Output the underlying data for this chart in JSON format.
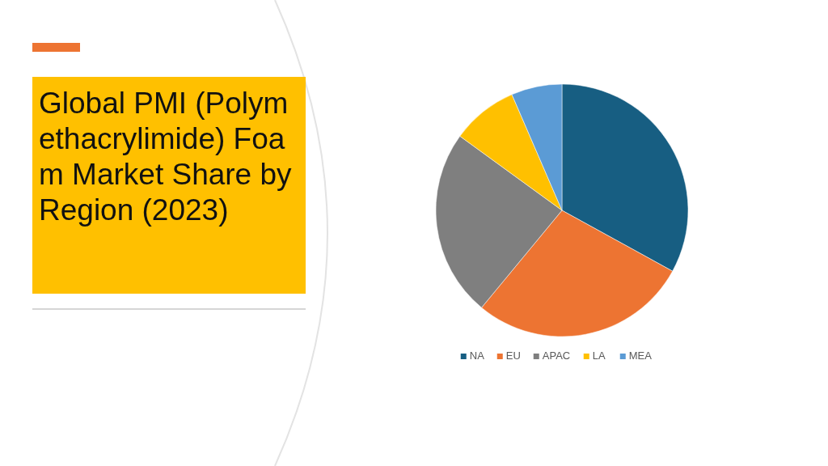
{
  "chart_data": {
    "type": "pie",
    "title": "Global PMI (Polymethacrylimide) Foam Market Share by Region (2023)",
    "categories": [
      "NA",
      "EU",
      "APAC",
      "LA",
      "MEA"
    ],
    "values": [
      33,
      28,
      24,
      8.5,
      6.5
    ],
    "colors": [
      "#175e82",
      "#ed7432",
      "#7f7f7f",
      "#ffc000",
      "#5b9bd5"
    ],
    "legend": "bottom"
  }
}
